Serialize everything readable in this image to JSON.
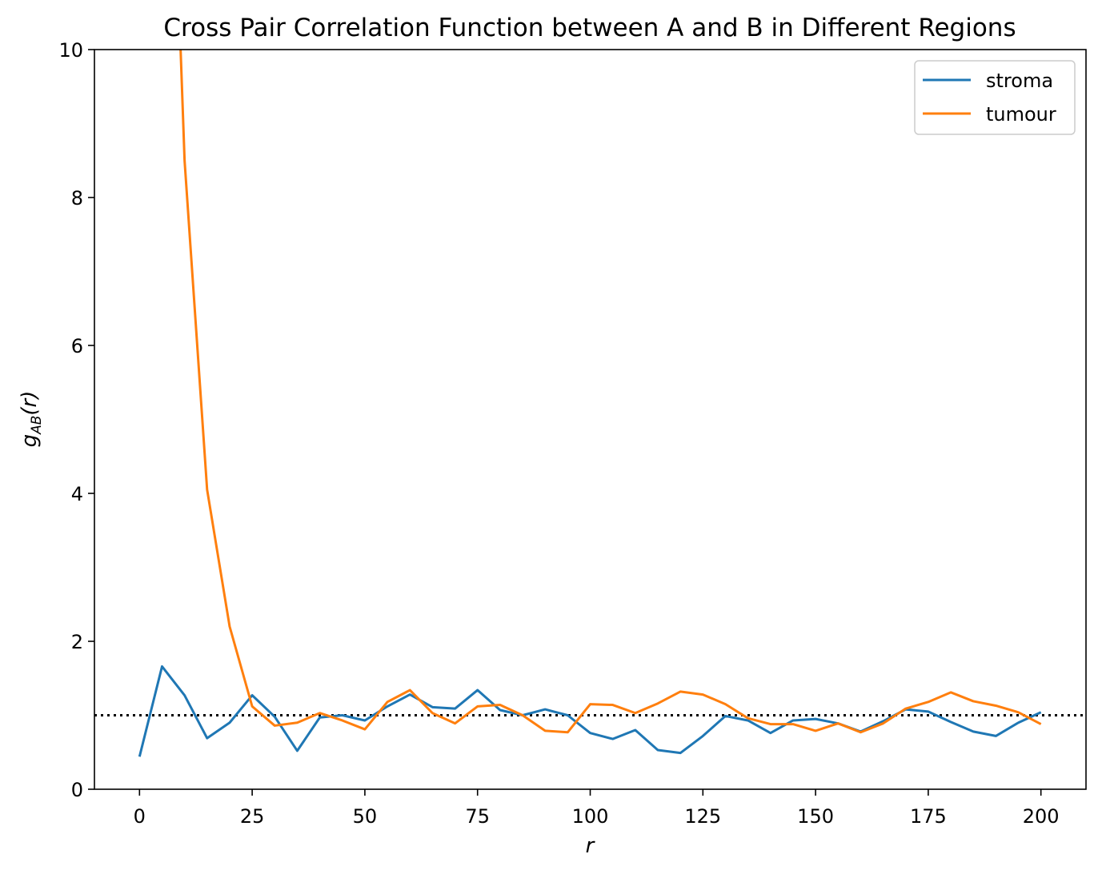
{
  "chart_data": {
    "type": "line",
    "title": "Cross Pair Correlation Function between A and B in Different Regions",
    "xlabel": "r",
    "ylabel": "g_AB(r)",
    "xlim": [
      -10,
      210
    ],
    "ylim": [
      0,
      10
    ],
    "xticks": [
      0,
      25,
      50,
      75,
      100,
      125,
      150,
      175,
      200
    ],
    "yticks": [
      0,
      2,
      4,
      6,
      8,
      10
    ],
    "grid": false,
    "legend_position": "top-right",
    "reference_line": {
      "y": 1.0,
      "style": "dotted",
      "color": "#000000"
    },
    "x": [
      0,
      5,
      10,
      15,
      20,
      25,
      30,
      35,
      40,
      45,
      50,
      55,
      60,
      65,
      70,
      75,
      80,
      85,
      90,
      95,
      100,
      105,
      110,
      115,
      120,
      125,
      130,
      135,
      140,
      145,
      150,
      155,
      160,
      165,
      170,
      175,
      180,
      185,
      190,
      195,
      200
    ],
    "series": [
      {
        "name": "stroma",
        "color": "#1f77b4",
        "values": [
          0.44,
          1.66,
          1.27,
          0.69,
          0.9,
          1.27,
          0.98,
          0.52,
          0.97,
          1.0,
          0.93,
          1.12,
          1.28,
          1.11,
          1.09,
          1.34,
          1.07,
          1.0,
          1.08,
          1.0,
          0.76,
          0.68,
          0.8,
          0.53,
          0.49,
          0.72,
          0.99,
          0.93,
          0.76,
          0.93,
          0.95,
          0.89,
          0.78,
          0.92,
          1.08,
          1.05,
          0.91,
          0.78,
          0.72,
          0.9,
          1.04
        ]
      },
      {
        "name": "tumour",
        "color": "#ff7f0e",
        "values": [
          null,
          17.0,
          8.5,
          4.05,
          2.2,
          1.12,
          0.86,
          0.9,
          1.03,
          0.93,
          0.81,
          1.18,
          1.34,
          1.03,
          0.89,
          1.12,
          1.14,
          1.0,
          0.79,
          0.77,
          1.15,
          1.14,
          1.03,
          1.16,
          1.32,
          1.28,
          1.15,
          0.96,
          0.88,
          0.88,
          0.79,
          0.89,
          0.77,
          0.89,
          1.09,
          1.18,
          1.31,
          1.19,
          1.13,
          1.04,
          0.88
        ]
      }
    ]
  }
}
